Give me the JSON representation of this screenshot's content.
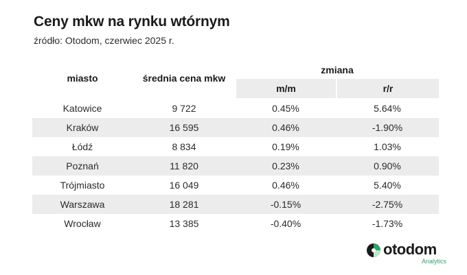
{
  "title": "Ceny mkw na rynku wtórnym",
  "subtitle": "źródło: Otodom, czerwiec 2025 r.",
  "table": {
    "headers": {
      "city": "miasto",
      "avg_price": "średnia cena mkw",
      "change": "zmiana",
      "mm": "m/m",
      "rr": "r/r"
    },
    "rows": [
      {
        "city": "Katowice",
        "price": "9 722",
        "mm": "0.45%",
        "rr": "5.64%"
      },
      {
        "city": "Kraków",
        "price": "16 595",
        "mm": "0.46%",
        "rr": "-1.90%"
      },
      {
        "city": "Łódź",
        "price": "8 834",
        "mm": "0.19%",
        "rr": "1.03%"
      },
      {
        "city": "Poznań",
        "price": "11 820",
        "mm": "0.23%",
        "rr": "0.90%"
      },
      {
        "city": "Trójmiasto",
        "price": "16 049",
        "mm": "0.46%",
        "rr": "5.40%"
      },
      {
        "city": "Warszawa",
        "price": "18 281",
        "mm": "-0.15%",
        "rr": "-2.75%"
      },
      {
        "city": "Wrocław",
        "price": "13 385",
        "mm": "-0.40%",
        "rr": "-1.73%"
      }
    ]
  },
  "brand": {
    "name": "otodom",
    "tagline": "Analytics",
    "colors": {
      "green": "#2fa36b",
      "dark": "#1a1a1a",
      "row_shade": "#ececec"
    },
    "icon": "otodom-logo-icon"
  }
}
